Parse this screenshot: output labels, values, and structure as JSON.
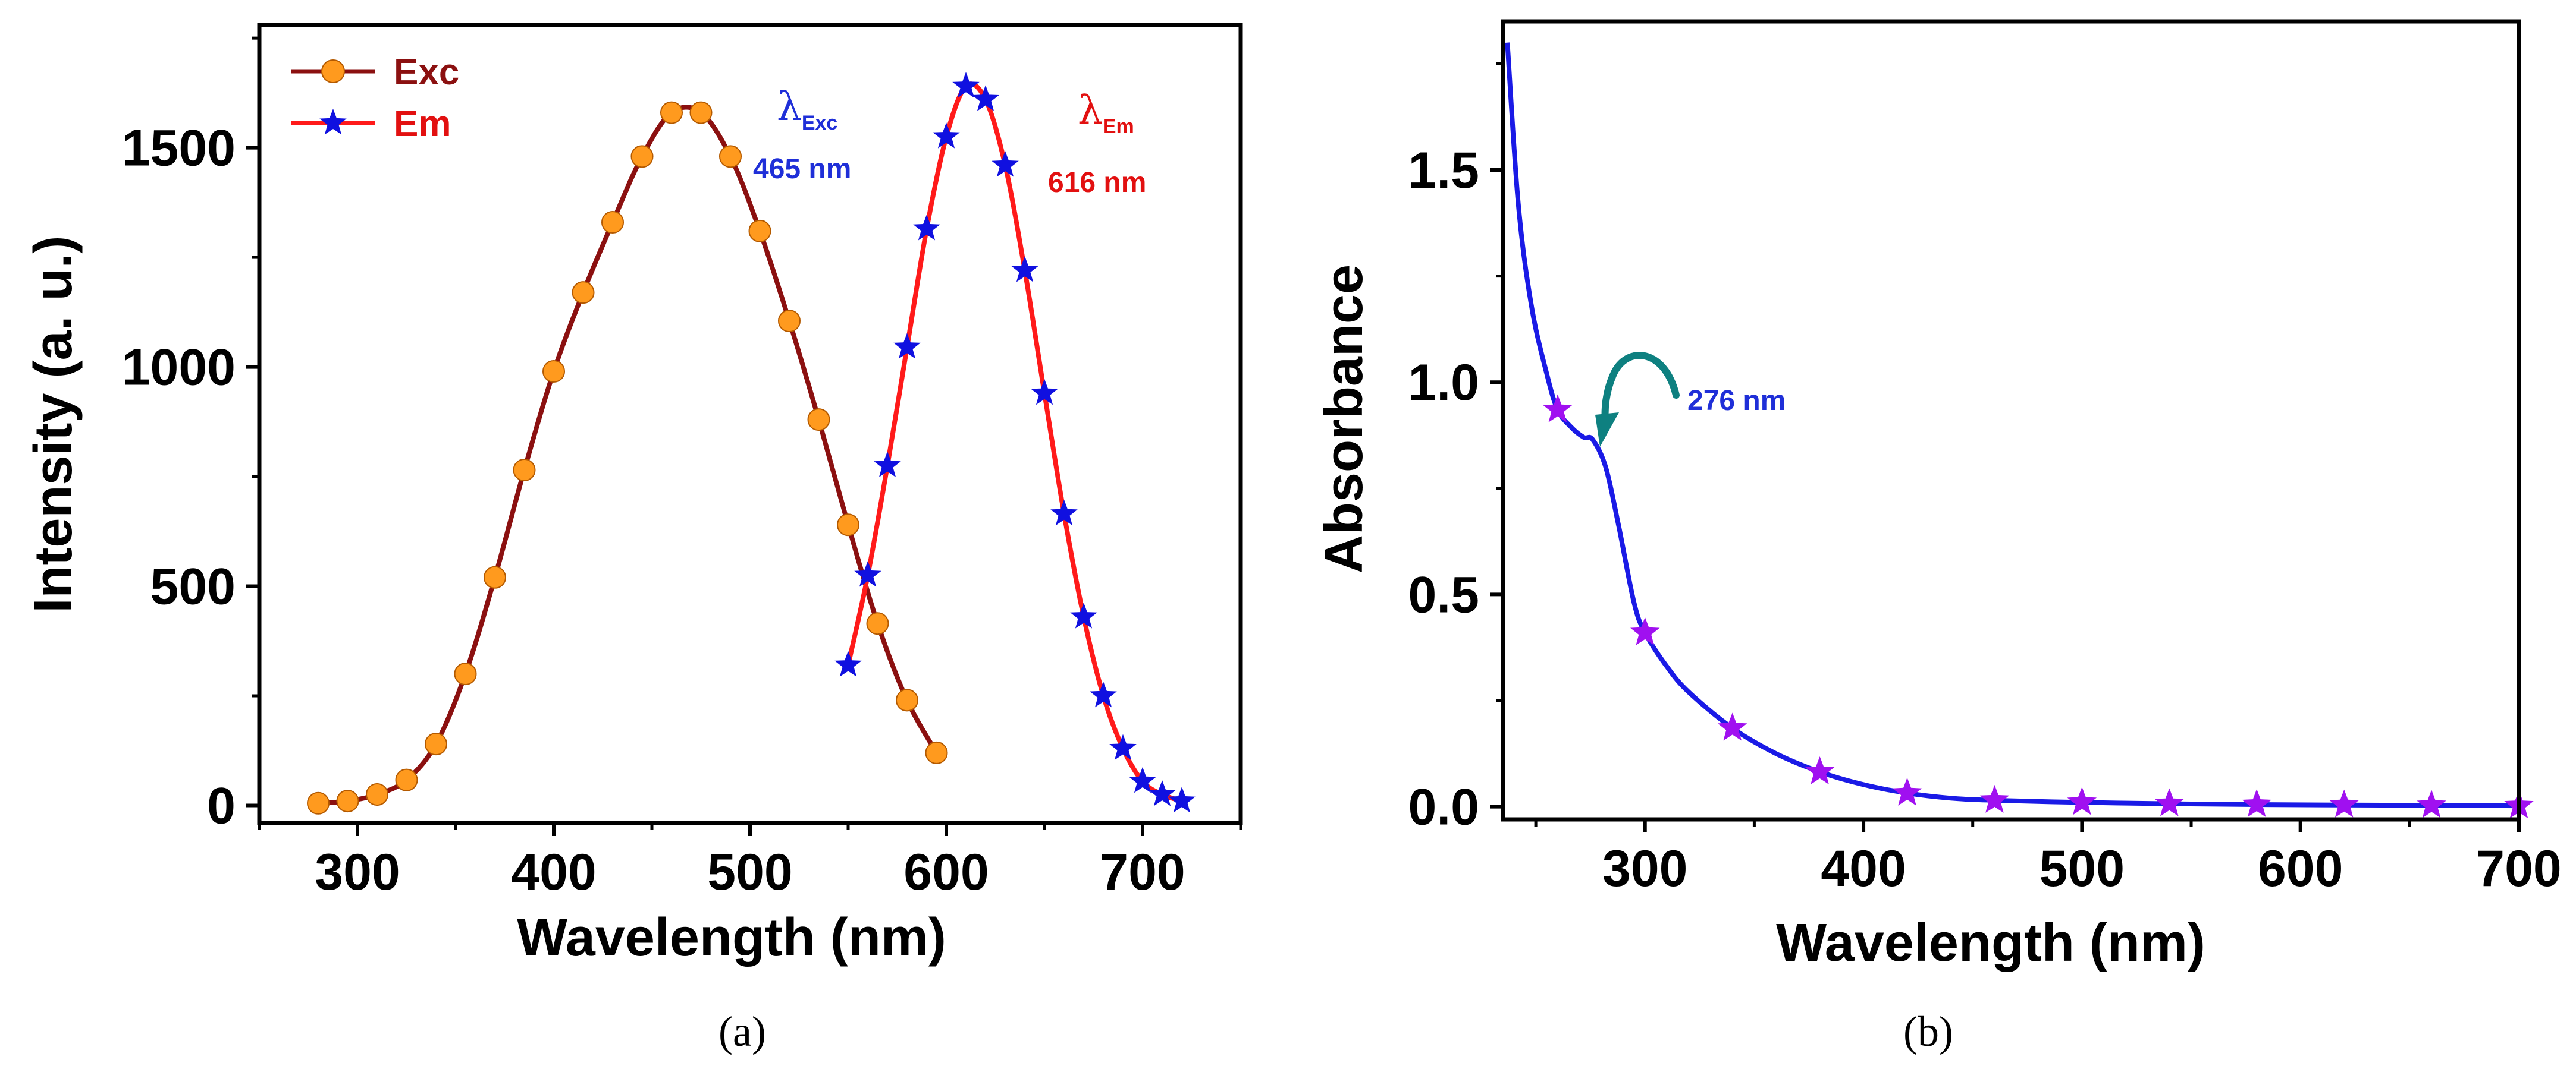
{
  "colors": {
    "exc_line": "#8B1010",
    "exc_marker": "#FF9A1E",
    "em_line": "#FF1A1A",
    "em_marker": "#1010E0",
    "abs_line": "#1A1AE6",
    "abs_marker": "#A010F0",
    "arrow": "#0E8080",
    "ann_blue": "#1F2FD8",
    "ann_red": "#E21010"
  },
  "chart_data": [
    {
      "type": "line",
      "panel": "(a)",
      "xlabel": "Wavelength (nm)",
      "ylabel": "Intensity (a. u.)",
      "xlim": [
        250,
        750
      ],
      "ylim": [
        -40,
        1780
      ],
      "xticks": [
        300,
        400,
        500,
        600,
        700
      ],
      "yticks": [
        0,
        500,
        1000,
        1500
      ],
      "legend_position": "top-left",
      "series": [
        {
          "name": "Exc",
          "marker": "circle",
          "x": [
            280,
            295,
            310,
            325,
            340,
            355,
            370,
            385,
            400,
            415,
            430,
            445,
            460,
            475,
            490,
            505,
            520,
            535,
            550,
            565,
            580,
            595
          ],
          "y": [
            5,
            10,
            25,
            58,
            140,
            300,
            520,
            765,
            990,
            1170,
            1330,
            1480,
            1580,
            1580,
            1480,
            1310,
            1105,
            880,
            640,
            415,
            240,
            120
          ]
        },
        {
          "name": "Em",
          "marker": "star",
          "x": [
            550,
            560,
            570,
            580,
            590,
            600,
            610,
            620,
            630,
            640,
            650,
            660,
            670,
            680,
            690,
            700,
            710,
            720
          ],
          "y": [
            320,
            525,
            775,
            1045,
            1315,
            1525,
            1640,
            1610,
            1460,
            1220,
            940,
            665,
            430,
            250,
            130,
            55,
            25,
            10
          ]
        }
      ],
      "annotations": [
        {
          "symbol": "λ",
          "subscript": "Exc",
          "value": "465 nm"
        },
        {
          "symbol": "λ",
          "subscript": "Em",
          "value": "616 nm"
        }
      ]
    },
    {
      "type": "line",
      "panel": "(b)",
      "xlabel": "Wavelength (nm)",
      "ylabel": "Absorbance",
      "xlim": [
        235,
        700
      ],
      "ylim": [
        -0.03,
        1.85
      ],
      "xticks": [
        300,
        400,
        500,
        600,
        700
      ],
      "yticks": [
        0.0,
        0.5,
        1.0,
        1.5
      ],
      "ytick_labels": [
        "0.0",
        "0.5",
        "1.0",
        "1.5"
      ],
      "series": [
        {
          "name": "Absorbance",
          "marker": "star",
          "curve_x": [
            237,
            242,
            248,
            255,
            260,
            266,
            272,
            276,
            282,
            288,
            295,
            300,
            310,
            320,
            340,
            360,
            380,
            400,
            420,
            440,
            460,
            500,
            540,
            580,
            620,
            660,
            700
          ],
          "curve_y": [
            1.8,
            1.42,
            1.18,
            1.02,
            0.935,
            0.895,
            0.87,
            0.865,
            0.8,
            0.66,
            0.48,
            0.41,
            0.33,
            0.27,
            0.185,
            0.125,
            0.082,
            0.052,
            0.032,
            0.02,
            0.015,
            0.01,
            0.007,
            0.005,
            0.004,
            0.003,
            0.002
          ],
          "marker_x": [
            260,
            300,
            340,
            380,
            420,
            460,
            500,
            540,
            580,
            620,
            660,
            700
          ],
          "marker_y": [
            0.935,
            0.41,
            0.185,
            0.082,
            0.032,
            0.015,
            0.01,
            0.007,
            0.005,
            0.004,
            0.003,
            0.002
          ]
        }
      ],
      "annotations": [
        {
          "text": "276 nm",
          "x": 276,
          "y": 0.865
        }
      ]
    }
  ]
}
